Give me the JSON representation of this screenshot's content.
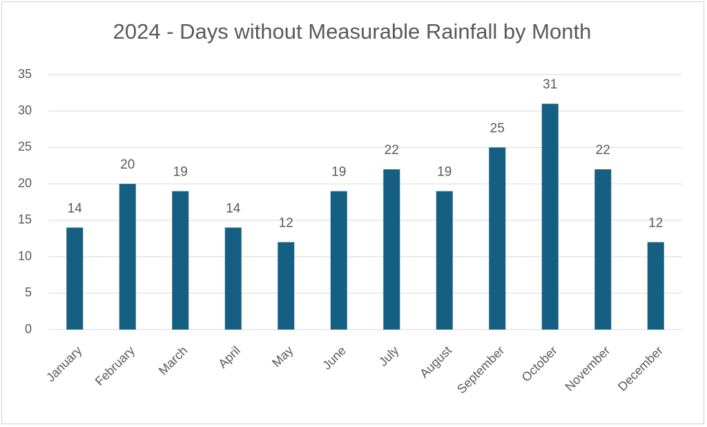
{
  "chart_data": {
    "type": "bar",
    "title": "2024 - Days without Measurable Rainfall by Month",
    "categories": [
      "January",
      "February",
      "March",
      "April",
      "May",
      "June",
      "July",
      "August",
      "September",
      "October",
      "November",
      "December"
    ],
    "values": [
      14,
      20,
      19,
      14,
      12,
      19,
      22,
      19,
      25,
      31,
      22,
      12
    ],
    "color": "#156082",
    "ylim": [
      0,
      35
    ],
    "yticks": [
      0,
      5,
      10,
      15,
      20,
      25,
      30,
      35
    ],
    "grid": true,
    "data_labels": true
  }
}
